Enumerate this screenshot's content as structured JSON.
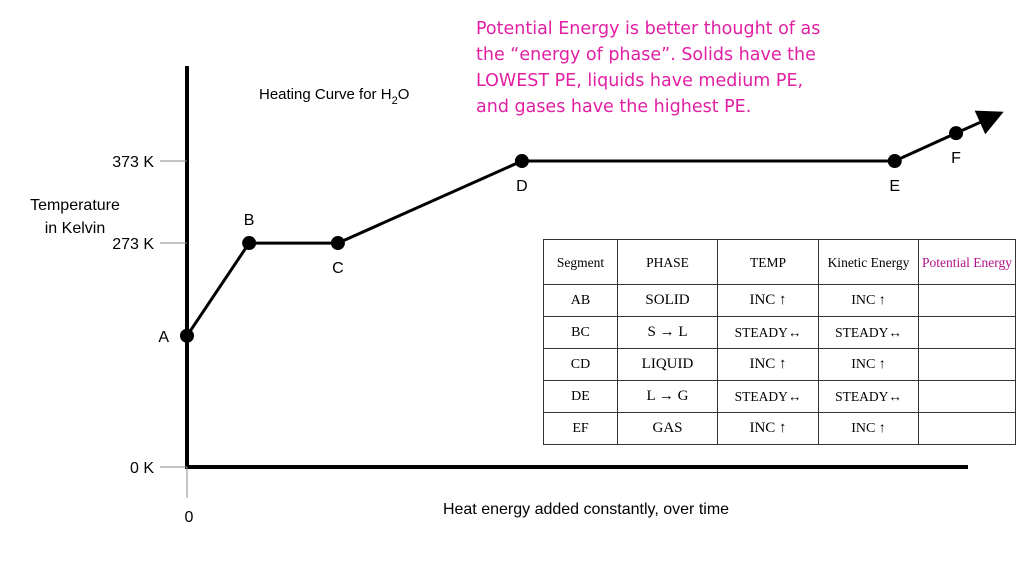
{
  "annotation": {
    "lines": [
      "Potential Energy is better thought of as",
      " the “energy of phase”.  Solids have the",
      "LOWEST PE, liquids have medium PE,",
      "and gases have the highest PE."
    ],
    "color": "#e21fa3"
  },
  "chart_data": {
    "type": "line",
    "title_main": "Heating Curve for H",
    "title_sub": "2",
    "title_end": "O",
    "ylabel_line1": "Temperature",
    "ylabel_line2": "in Kelvin",
    "xlabel": "Heat energy added constantly, over time",
    "x_tick_label": "0",
    "y_ticks": [
      {
        "value": 0,
        "label": "0 K"
      },
      {
        "value": 273,
        "label": "273 K"
      },
      {
        "value": 373,
        "label": "373 K"
      }
    ],
    "ylim": [
      0,
      373
    ],
    "points": [
      {
        "label": "A",
        "x": 0,
        "y": 160
      },
      {
        "label": "B",
        "x": 7.7,
        "y": 273
      },
      {
        "label": "C",
        "x": 18.7,
        "y": 273
      },
      {
        "label": "D",
        "x": 41.5,
        "y": 373
      },
      {
        "label": "E",
        "x": 87.7,
        "y": 373
      },
      {
        "label": "F",
        "x": 95.3,
        "y": 407
      }
    ],
    "arrow_end": {
      "x": 101.2,
      "y": 433
    },
    "line_color": "#000000"
  },
  "table": {
    "headers": [
      "Segment",
      "PHASE",
      "TEMP",
      "Kinetic Energy",
      "Potential Energy"
    ],
    "rows": [
      {
        "segment": "AB",
        "phase": "SOLID",
        "temp": "INC ↑",
        "ke": "INC ↑",
        "pe": ""
      },
      {
        "segment": "BC",
        "phase": "S → L",
        "temp": "STEADY↔",
        "ke": "STEADY↔",
        "pe": ""
      },
      {
        "segment": "CD",
        "phase": "LIQUID",
        "temp": "INC ↑",
        "ke": "INC ↑",
        "pe": ""
      },
      {
        "segment": "DE",
        "phase": "L → G",
        "temp": "STEADY↔",
        "ke": "STEADY↔",
        "pe": ""
      },
      {
        "segment": "EF",
        "phase": "GAS",
        "temp": "INC ↑",
        "ke": "INC ↑",
        "pe": ""
      }
    ],
    "pe_header_color": "#b0128a"
  }
}
